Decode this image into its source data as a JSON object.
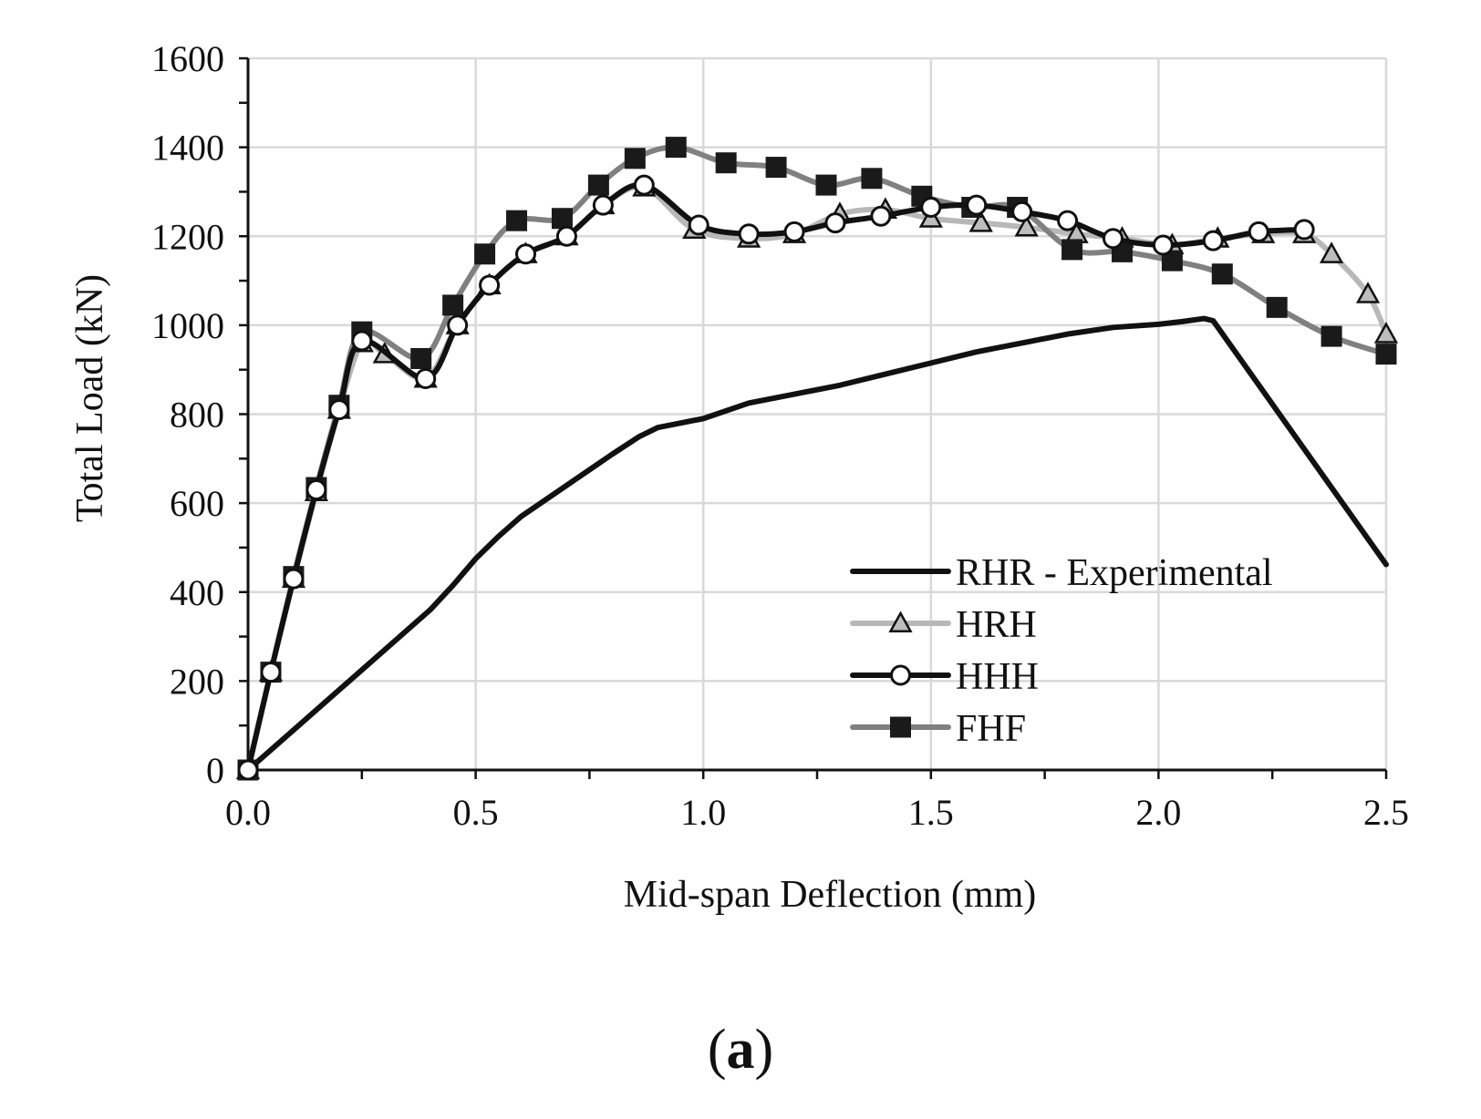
{
  "chart_data": {
    "type": "line",
    "title": "",
    "xlabel": "Mid-span Deflection (mm)",
    "ylabel": "Total Load (kN)",
    "xlim": [
      0,
      2.5
    ],
    "ylim": [
      0,
      1600
    ],
    "xticks": [
      "0.0",
      "0.5",
      "1.0",
      "1.5",
      "2.0",
      "2.5"
    ],
    "yticks": [
      "0",
      "200",
      "400",
      "600",
      "800",
      "1000",
      "1200",
      "1400",
      "1600"
    ],
    "grid": true,
    "legend_position": "bottom-right",
    "panel_label": {
      "open": "(",
      "letter": "a",
      "close": ")"
    },
    "colors": {
      "black": "#111111",
      "light_gray": "#b8b8b8",
      "mid_gray": "#808080",
      "grid": "#d9d9d9"
    },
    "series": [
      {
        "name": "RHR - Experimental",
        "color": "#111111",
        "marker": "none",
        "x": [
          0.0,
          0.1,
          0.2,
          0.3,
          0.4,
          0.45,
          0.5,
          0.55,
          0.6,
          0.7,
          0.8,
          0.86,
          0.9,
          1.0,
          1.1,
          1.2,
          1.3,
          1.4,
          1.5,
          1.6,
          1.7,
          1.8,
          1.9,
          2.0,
          2.05,
          2.1,
          2.12,
          2.5
        ],
        "values": [
          0,
          90,
          180,
          270,
          360,
          415,
          475,
          525,
          570,
          640,
          710,
          750,
          770,
          790,
          825,
          845,
          865,
          890,
          915,
          940,
          960,
          980,
          995,
          1002,
          1008,
          1015,
          1010,
          462
        ]
      },
      {
        "name": "HRH",
        "color": "#b8b8b8",
        "marker": "triangle",
        "x": [
          0.0,
          0.05,
          0.1,
          0.15,
          0.2,
          0.25,
          0.3,
          0.39,
          0.46,
          0.53,
          0.61,
          0.7,
          0.78,
          0.87,
          0.98,
          1.1,
          1.2,
          1.3,
          1.4,
          1.5,
          1.61,
          1.71,
          1.82,
          1.92,
          2.03,
          2.13,
          2.23,
          2.32,
          2.38,
          2.46,
          2.5
        ],
        "values": [
          0,
          220,
          430,
          625,
          810,
          960,
          935,
          880,
          1000,
          1090,
          1160,
          1200,
          1270,
          1310,
          1215,
          1195,
          1205,
          1250,
          1260,
          1240,
          1230,
          1220,
          1205,
          1195,
          1180,
          1195,
          1205,
          1205,
          1160,
          1070,
          980
        ]
      },
      {
        "name": "HHH",
        "color": "#111111",
        "marker": "circle",
        "x": [
          0.0,
          0.05,
          0.1,
          0.15,
          0.2,
          0.25,
          0.39,
          0.46,
          0.53,
          0.61,
          0.7,
          0.78,
          0.87,
          0.99,
          1.1,
          1.2,
          1.29,
          1.39,
          1.5,
          1.6,
          1.7,
          1.8,
          1.9,
          2.01,
          2.12,
          2.22,
          2.32
        ],
        "values": [
          0,
          220,
          430,
          630,
          810,
          965,
          880,
          1000,
          1090,
          1160,
          1200,
          1270,
          1315,
          1225,
          1205,
          1210,
          1230,
          1245,
          1265,
          1270,
          1255,
          1235,
          1195,
          1180,
          1190,
          1210,
          1215
        ]
      },
      {
        "name": "FHF",
        "color": "#808080",
        "marker": "square",
        "x": [
          0.0,
          0.05,
          0.1,
          0.15,
          0.2,
          0.25,
          0.38,
          0.45,
          0.52,
          0.59,
          0.69,
          0.77,
          0.85,
          0.94,
          1.05,
          1.16,
          1.27,
          1.37,
          1.48,
          1.59,
          1.69,
          1.81,
          1.92,
          2.03,
          2.14,
          2.26,
          2.38,
          2.5
        ],
        "values": [
          0,
          220,
          435,
          635,
          820,
          985,
          925,
          1045,
          1160,
          1235,
          1240,
          1315,
          1375,
          1400,
          1365,
          1355,
          1315,
          1330,
          1290,
          1265,
          1265,
          1170,
          1165,
          1145,
          1115,
          1040,
          975,
          935
        ]
      }
    ]
  }
}
